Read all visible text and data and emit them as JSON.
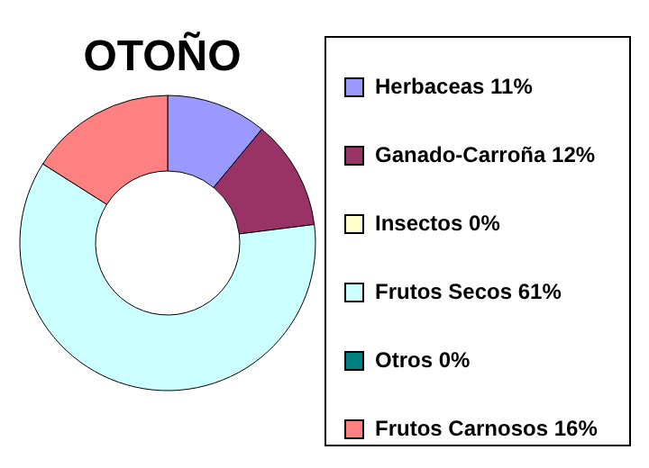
{
  "chart_data": {
    "type": "donut",
    "title": "OTOÑO",
    "categories": [
      "Herbaceas",
      "Ganado-Carroña",
      "Insectos",
      "Frutos Secos",
      "Otros",
      "Frutos Carnosos"
    ],
    "values": [
      11,
      12,
      0,
      61,
      0,
      16
    ],
    "value_labels": [
      "11%",
      "12%",
      "0%",
      "61%",
      "0%",
      "16%"
    ],
    "colors": [
      "#9999ff",
      "#993366",
      "#ffffcc",
      "#ccffff",
      "#008080",
      "#ff8080"
    ],
    "legend": "right"
  }
}
